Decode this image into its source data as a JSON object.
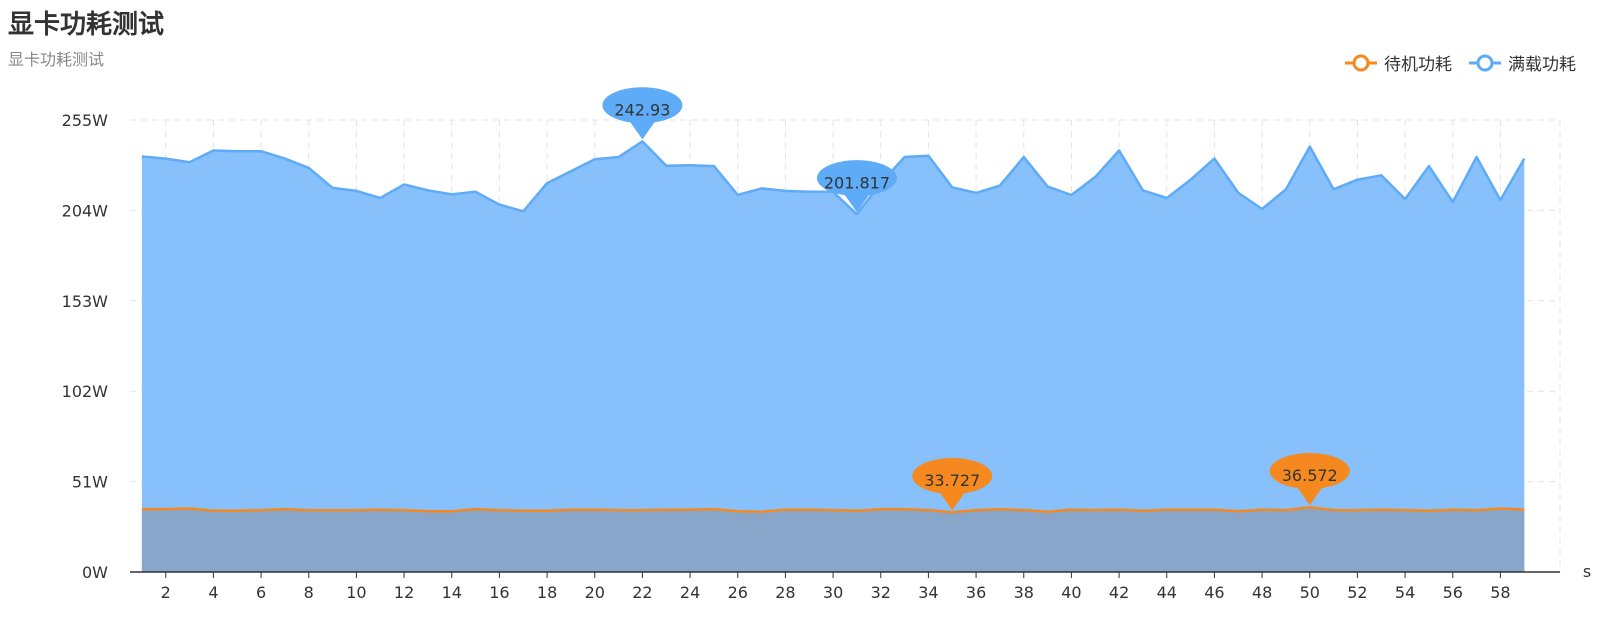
{
  "header": {
    "title": "显卡功耗测试",
    "subtitle": "显卡功耗测试"
  },
  "chart_data": {
    "type": "area",
    "x": [
      1,
      2,
      3,
      4,
      5,
      6,
      7,
      8,
      9,
      10,
      11,
      12,
      13,
      14,
      15,
      16,
      17,
      18,
      19,
      20,
      21,
      22,
      23,
      24,
      25,
      26,
      27,
      28,
      29,
      30,
      31,
      32,
      33,
      34,
      35,
      36,
      37,
      38,
      39,
      40,
      41,
      42,
      43,
      44,
      45,
      46,
      47,
      48,
      49,
      50,
      51,
      52,
      53,
      54,
      55,
      56,
      57,
      58,
      59
    ],
    "xlabel": "s",
    "ylabel": "",
    "x_ticks": [
      2,
      4,
      6,
      8,
      10,
      12,
      14,
      16,
      18,
      20,
      22,
      24,
      26,
      28,
      30,
      32,
      34,
      36,
      38,
      40,
      42,
      44,
      46,
      48,
      50,
      52,
      54,
      56,
      58
    ],
    "y_ticks": [
      0,
      51,
      102,
      153,
      204,
      255
    ],
    "y_tick_labels": [
      "0W",
      "51W",
      "102W",
      "153W",
      "204W",
      "255W"
    ],
    "ylim": [
      0,
      255
    ],
    "grid": true,
    "legend_position": "top-right",
    "series": [
      {
        "name": "待机功耗",
        "color": "#f5891f",
        "fill": "#87a6c9",
        "values": [
          35.5,
          35.5,
          35.8,
          34.6,
          34.6,
          34.9,
          35.5,
          34.9,
          34.9,
          34.9,
          35.2,
          34.9,
          34.3,
          34.3,
          35.5,
          34.9,
          34.6,
          34.6,
          35.2,
          35.2,
          34.9,
          34.9,
          35.2,
          35.2,
          35.5,
          34.3,
          34.0,
          35.2,
          35.2,
          34.9,
          34.6,
          35.5,
          35.5,
          34.9,
          33.727,
          34.9,
          35.5,
          34.9,
          34.0,
          35.2,
          34.9,
          35.2,
          34.6,
          35.2,
          35.2,
          35.2,
          34.3,
          35.2,
          34.9,
          36.572,
          34.9,
          34.9,
          35.2,
          34.9,
          34.6,
          35.2,
          34.9,
          35.8,
          35.2
        ],
        "markers": [
          {
            "x": 35,
            "y": 33.727,
            "label": "33.727"
          },
          {
            "x": 50,
            "y": 36.572,
            "label": "36.572"
          }
        ]
      },
      {
        "name": "满载功耗",
        "color": "#5eabf7",
        "fill": "#87c0fb",
        "values": [
          234.4,
          233.2,
          231.2,
          237.8,
          237.4,
          237.4,
          233.2,
          228.0,
          216.7,
          215.0,
          211.0,
          218.6,
          215.3,
          213.0,
          214.5,
          207.3,
          203.5,
          219.4,
          226.1,
          232.9,
          234.1,
          242.93,
          229.2,
          229.5,
          229.0,
          212.7,
          216.4,
          215.0,
          214.5,
          214.5,
          201.817,
          219.4,
          234.1,
          234.8,
          217.0,
          213.9,
          218.0,
          234.1,
          217.5,
          212.7,
          222.9,
          237.8,
          215.3,
          211.0,
          221.3,
          233.2,
          213.9,
          204.8,
          215.9,
          240.0,
          215.9,
          221.3,
          223.8,
          210.4,
          229.0,
          208.7,
          234.1,
          209.8,
          233.2
        ],
        "markers": [
          {
            "x": 22,
            "y": 242.93,
            "label": "242.93"
          },
          {
            "x": 31,
            "y": 201.817,
            "label": "201.817"
          }
        ]
      }
    ]
  }
}
